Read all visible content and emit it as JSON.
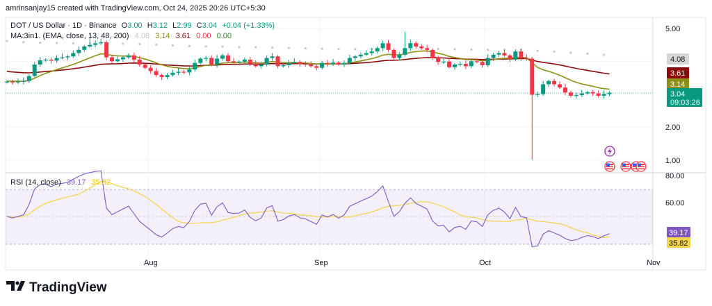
{
  "header": {
    "credit": "amrinsanjay15 created with TradingView.com, Oct 24, 2025 20:26 UTC+5:30"
  },
  "legend": {
    "symbol": "DOT / US Dollar · 1D · Binance",
    "o_label": "O",
    "o": "3.00",
    "h_label": "H",
    "h": "3.12",
    "l_label": "L",
    "l": "2.99",
    "c_label": "C",
    "c": "3.04",
    "change": "+0.04 (+1.33%)",
    "ma_title": "MA:3in1. (EMA, close, 13, 48, 200)",
    "ma_values": [
      "4.08",
      "3.14",
      "3.61",
      "0.00",
      "0.00"
    ],
    "rsi_title": "RSI (14, close)",
    "rsi_values": [
      "39.17",
      "35.82"
    ]
  },
  "price_axis": {
    "ticks": [
      "5.00",
      "2.00",
      "1.00"
    ],
    "tick_values": [
      5,
      2,
      1
    ]
  },
  "price_labels": {
    "ema200": "4.08",
    "ema48": "3.61",
    "ema13": "3.14",
    "last": "3.04",
    "countdown": "09:03:26"
  },
  "rsi_axis": {
    "ticks": [
      "80.00",
      "60.00"
    ],
    "tick_values": [
      80,
      60
    ]
  },
  "rsi_labels": {
    "rsi": "39.17",
    "ma": "35.82"
  },
  "time_axis": {
    "labels": [
      "Aug",
      "Sep",
      "Oct",
      "Nov"
    ]
  },
  "footer": {
    "brand": "TradingView"
  },
  "colors": {
    "up": "#089981",
    "down": "#f23645",
    "ema13": "#8f8f14",
    "ema48": "#8b0b0b",
    "ema200": "#c8c8c8",
    "rsi": "#7e57c2",
    "rsi_ma": "#f5d34a",
    "last": "#089981"
  },
  "events": [
    "lightning-event-icon",
    "us-flag-event-icon",
    "us-flag-event-icon",
    "us-flag-event-icon",
    "us-flag-event-icon"
  ],
  "chart_data": {
    "type": "candlestick",
    "start_date": "2025-07-06",
    "closes": [
      3.38,
      3.36,
      3.38,
      3.4,
      3.55,
      3.9,
      4.03,
      4.05,
      4.02,
      4.1,
      4.12,
      4.15,
      4.25,
      4.35,
      4.45,
      4.5,
      4.55,
      4.58,
      4.12,
      4.0,
      4.06,
      4.12,
      4.18,
      4.05,
      3.9,
      3.8,
      3.7,
      3.58,
      3.52,
      3.58,
      3.65,
      3.68,
      3.66,
      3.75,
      3.95,
      4.08,
      4.1,
      3.9,
      4.08,
      4.18,
      4.0,
      3.98,
      3.99,
      4.05,
      3.92,
      3.85,
      3.9,
      4.1,
      4.15,
      3.85,
      3.88,
      3.95,
      3.98,
      3.92,
      3.9,
      3.85,
      3.8,
      3.95,
      3.92,
      3.96,
      3.9,
      3.95,
      4.1,
      4.15,
      4.2,
      4.25,
      4.3,
      4.4,
      4.55,
      4.35,
      4.1,
      4.2,
      4.4,
      4.55,
      4.45,
      4.4,
      4.35,
      4.1,
      3.98,
      3.99,
      3.82,
      3.9,
      3.92,
      3.85,
      4.0,
      3.98,
      3.88,
      4.1,
      4.2,
      4.25,
      4.18,
      4.05,
      4.3,
      4.1,
      4.08,
      2.98,
      3.0,
      3.3,
      3.4,
      3.3,
      3.2,
      3.05,
      2.95,
      2.97,
      3.02,
      3.06,
      3.02,
      2.95,
      3.0,
      3.04
    ],
    "special_highs": {
      "72": 4.9,
      "15": 4.72
    },
    "special_lows": {
      "95": 1.0
    },
    "ylim": [
      0.8,
      5.3
    ],
    "rsi_ylim": [
      20,
      80
    ]
  }
}
